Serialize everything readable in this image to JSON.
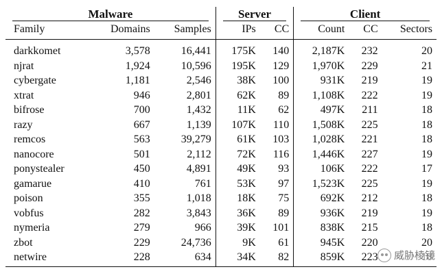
{
  "groups": {
    "malware": "Malware",
    "server": "Server",
    "client": "Client"
  },
  "columns": {
    "family": "Family",
    "domains": "Domains",
    "samples": "Samples",
    "ips": "IPs",
    "server_cc": "CC",
    "count": "Count",
    "client_cc": "CC",
    "sectors": "Sectors"
  },
  "rows": [
    {
      "family": "darkkomet",
      "domains": "3,578",
      "samples": "16,441",
      "ips": "175K",
      "server_cc": "140",
      "count": "2,187K",
      "client_cc": "232",
      "sectors": "20"
    },
    {
      "family": "njrat",
      "domains": "1,924",
      "samples": "10,596",
      "ips": "195K",
      "server_cc": "129",
      "count": "1,970K",
      "client_cc": "229",
      "sectors": "21"
    },
    {
      "family": "cybergate",
      "domains": "1,181",
      "samples": "2,546",
      "ips": "38K",
      "server_cc": "100",
      "count": "931K",
      "client_cc": "219",
      "sectors": "19"
    },
    {
      "family": "xtrat",
      "domains": "946",
      "samples": "2,801",
      "ips": "62K",
      "server_cc": "89",
      "count": "1,108K",
      "client_cc": "222",
      "sectors": "19"
    },
    {
      "family": "bifrose",
      "domains": "700",
      "samples": "1,432",
      "ips": "11K",
      "server_cc": "62",
      "count": "497K",
      "client_cc": "211",
      "sectors": "18"
    },
    {
      "family": "razy",
      "domains": "667",
      "samples": "1,139",
      "ips": "107K",
      "server_cc": "110",
      "count": "1,508K",
      "client_cc": "225",
      "sectors": "18"
    },
    {
      "family": "remcos",
      "domains": "563",
      "samples": "39,279",
      "ips": "61K",
      "server_cc": "103",
      "count": "1,028K",
      "client_cc": "221",
      "sectors": "18"
    },
    {
      "family": "nanocore",
      "domains": "501",
      "samples": "2,112",
      "ips": "72K",
      "server_cc": "116",
      "count": "1,446K",
      "client_cc": "227",
      "sectors": "19"
    },
    {
      "family": "ponystealer",
      "domains": "450",
      "samples": "4,891",
      "ips": "49K",
      "server_cc": "93",
      "count": "106K",
      "client_cc": "222",
      "sectors": "17"
    },
    {
      "family": "gamarue",
      "domains": "410",
      "samples": "761",
      "ips": "53K",
      "server_cc": "97",
      "count": "1,523K",
      "client_cc": "225",
      "sectors": "19"
    },
    {
      "family": "poison",
      "domains": "355",
      "samples": "1,018",
      "ips": "18K",
      "server_cc": "75",
      "count": "692K",
      "client_cc": "212",
      "sectors": "18"
    },
    {
      "family": "vobfus",
      "domains": "282",
      "samples": "3,843",
      "ips": "36K",
      "server_cc": "89",
      "count": "936K",
      "client_cc": "219",
      "sectors": "19"
    },
    {
      "family": "nymeria",
      "domains": "279",
      "samples": "966",
      "ips": "39K",
      "server_cc": "101",
      "count": "838K",
      "client_cc": "215",
      "sectors": "18"
    },
    {
      "family": "zbot",
      "domains": "229",
      "samples": "24,736",
      "ips": "9K",
      "server_cc": "61",
      "count": "945K",
      "client_cc": "220",
      "sectors": "20"
    },
    {
      "family": "netwire",
      "domains": "228",
      "samples": "634",
      "ips": "34K",
      "server_cc": "82",
      "count": "859K",
      "client_cc": "223",
      "sectors": "18"
    }
  ],
  "watermark": {
    "text": "威胁棱镜",
    "icon": "wechat-icon"
  }
}
